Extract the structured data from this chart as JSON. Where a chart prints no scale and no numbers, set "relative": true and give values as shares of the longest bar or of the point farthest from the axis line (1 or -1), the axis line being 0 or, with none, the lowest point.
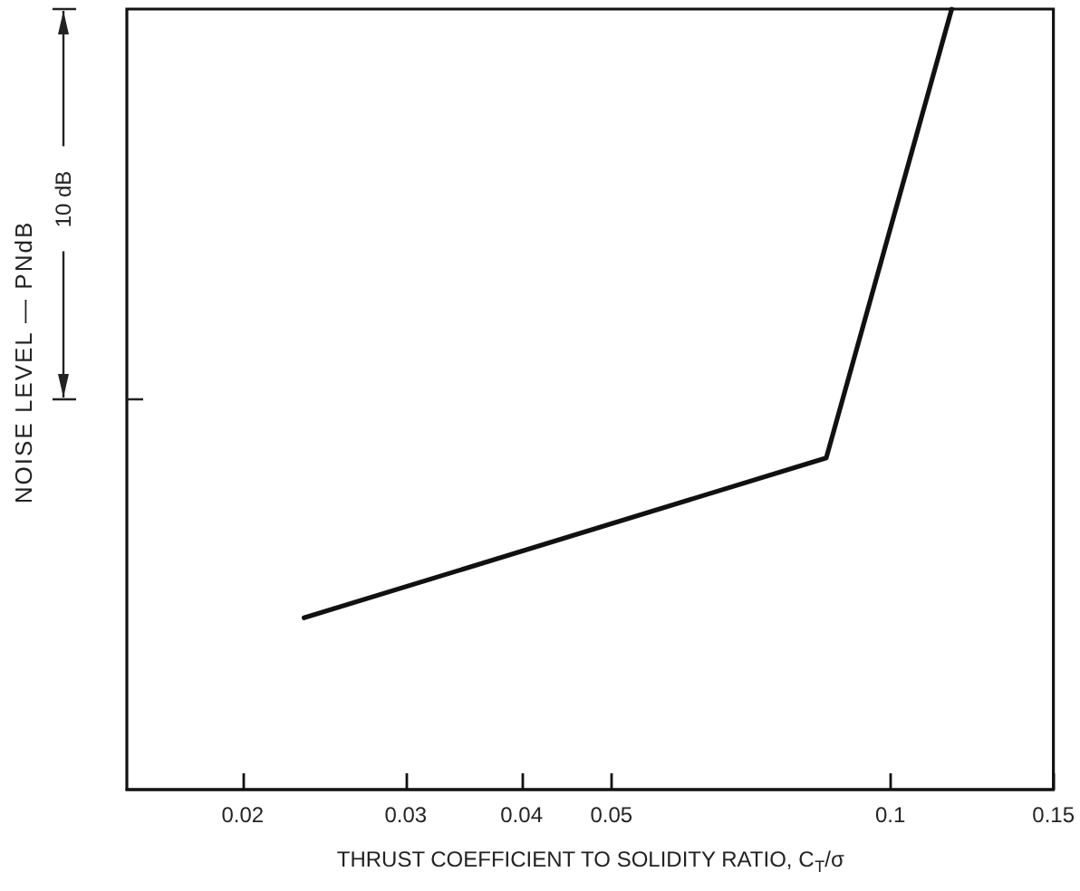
{
  "chart_data": {
    "type": "line",
    "xlabel": "THRUST COEFFICIENT TO SOLIDITY RATIO, C$_{T}$/σ",
    "ylabel": "NOISE LEVEL — PNdB",
    "annotations": [
      "10 dB"
    ],
    "relative": true,
    "log": "x",
    "x": [
      0.0233,
      0.0853,
      0.1165
    ],
    "series": [
      {
        "color": "#111111",
        "values": [
          0.22,
          0.425,
          1
        ]
      }
    ],
    "xlim": [
      0.015,
      0.15
    ],
    "xticks": [
      0.02,
      0.03,
      0.04,
      0.05,
      0.1,
      0.15
    ]
  }
}
